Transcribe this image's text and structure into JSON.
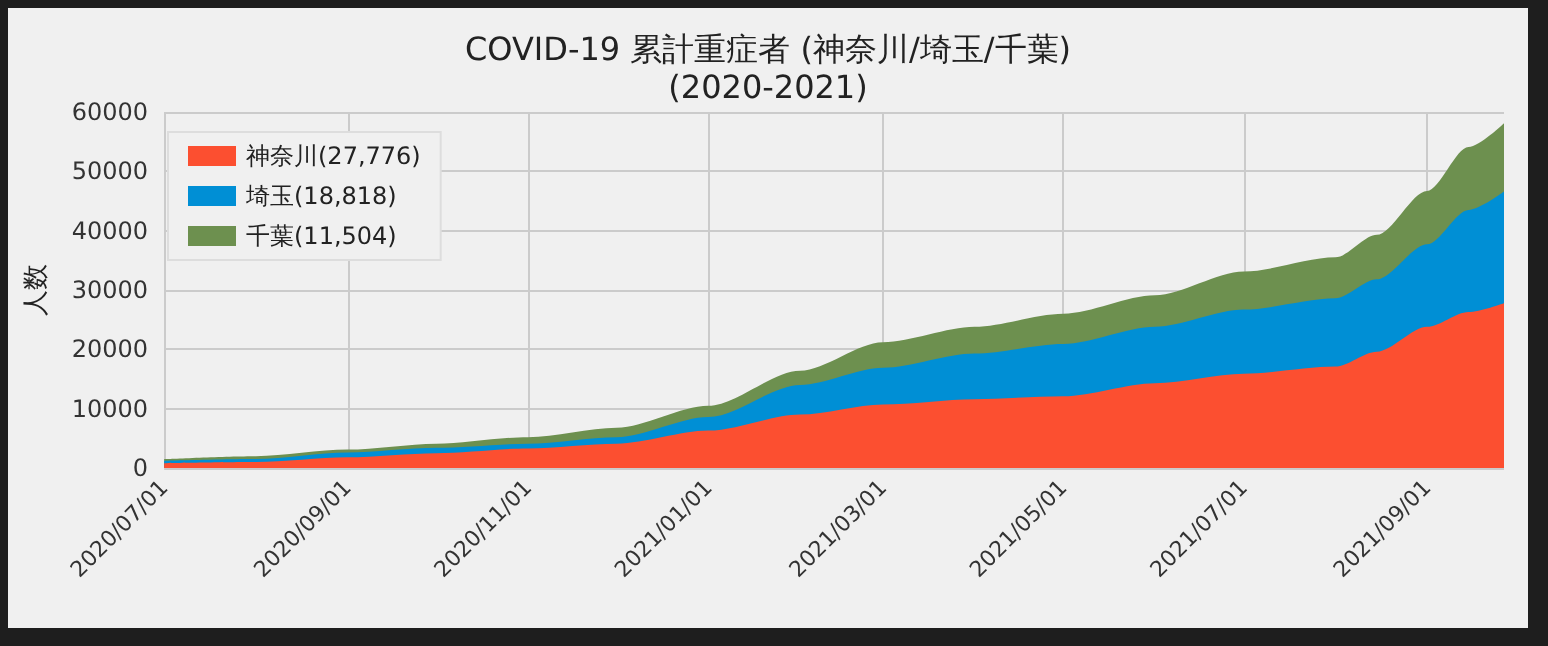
{
  "chart_data": {
    "type": "area",
    "title": "COVID-19 累計重症者 (神奈川/埼玉/千葉)\n(2020-2021)",
    "ylabel": "人数",
    "x": [
      "2020-07-01",
      "2020-08-01",
      "2020-09-01",
      "2020-10-01",
      "2020-11-01",
      "2020-12-01",
      "2021-01-01",
      "2021-02-01",
      "2021-03-01",
      "2021-04-01",
      "2021-05-01",
      "2021-06-01",
      "2021-07-01",
      "2021-08-01",
      "2021-08-15",
      "2021-09-01",
      "2021-09-15",
      "2021-09-27"
    ],
    "series": [
      {
        "name": "神奈川(27,776)",
        "color": "#fc4f30",
        "values": [
          800,
          1000,
          1800,
          2500,
          3300,
          4100,
          6300,
          9000,
          10700,
          11600,
          12100,
          14300,
          15900,
          17100,
          19600,
          23800,
          26300,
          27776
        ]
      },
      {
        "name": "埼玉(18,818)",
        "color": "#008fd5",
        "values": [
          400,
          500,
          800,
          900,
          800,
          1100,
          2300,
          5000,
          6200,
          7700,
          8800,
          9500,
          10800,
          11500,
          12200,
          13900,
          17200,
          18818
        ]
      },
      {
        "name": "千葉(11,504)",
        "color": "#6d904f",
        "values": [
          300,
          500,
          500,
          700,
          1100,
          1600,
          1900,
          2400,
          4300,
          4500,
          5100,
          5300,
          6400,
          6900,
          7500,
          9000,
          10600,
          11504
        ]
      }
    ],
    "stacked": true,
    "xlim": [
      "2020-07-01",
      "2021-09-27"
    ],
    "xticks": [
      {
        "value": "2020-07-01",
        "label": "2020/07/01"
      },
      {
        "value": "2020-09-01",
        "label": "2020/09/01"
      },
      {
        "value": "2020-11-01",
        "label": "2020/11/01"
      },
      {
        "value": "2021-01-01",
        "label": "2021/01/01"
      },
      {
        "value": "2021-03-01",
        "label": "2021/03/01"
      },
      {
        "value": "2021-05-01",
        "label": "2021/05/01"
      },
      {
        "value": "2021-07-01",
        "label": "2021/07/01"
      },
      {
        "value": "2021-09-01",
        "label": "2021/09/01"
      }
    ],
    "ylim": [
      0,
      60000
    ],
    "yticks": [
      0,
      10000,
      20000,
      30000,
      40000,
      50000,
      60000
    ],
    "grid": true,
    "legend": "top left"
  }
}
